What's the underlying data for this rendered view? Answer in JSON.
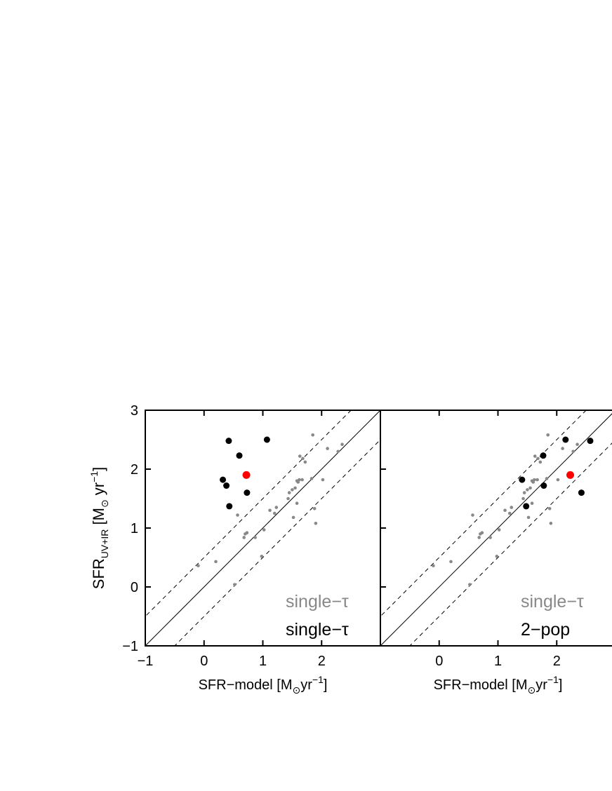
{
  "chart_data": [
    {
      "type": "scatter",
      "panel": "left",
      "xlim": [
        -1,
        3
      ],
      "ylim": [
        -1,
        3
      ],
      "xticks": [
        "-1",
        "0",
        "1",
        "2"
      ],
      "yticks": [
        "-1",
        "0",
        "1",
        "2",
        "3"
      ],
      "xlabel": {
        "main": "SFR−model [M",
        "sub": "⊙",
        "mid": "yr",
        "sup": "−1",
        "end": "]"
      },
      "ylabel": {
        "main": "SFR",
        "sub": "UV+IR",
        "mid": " [M",
        "sub2": "⊙",
        "mid2": " yr",
        "sup": "−1",
        "end": "]"
      },
      "legend": {
        "line1": "single−τ",
        "line2": "single−τ"
      },
      "reference_lines": {
        "one_to_one": true,
        "offsets": [
          0.5,
          -0.5
        ]
      },
      "series": [
        {
          "color": "#888888",
          "points": [
            [
              -0.1,
              0.36
            ],
            [
              0.2,
              0.43
            ],
            [
              0.52,
              0.04
            ],
            [
              0.68,
              0.84
            ],
            [
              0.7,
              0.9
            ],
            [
              0.73,
              0.92
            ],
            [
              0.87,
              0.84
            ],
            [
              0.98,
              0.52
            ],
            [
              1.02,
              0.97
            ],
            [
              1.12,
              1.3
            ],
            [
              1.2,
              1.25
            ],
            [
              1.23,
              1.35
            ],
            [
              1.43,
              1.5
            ],
            [
              1.45,
              1.6
            ],
            [
              1.5,
              1.65
            ],
            [
              1.55,
              1.68
            ],
            [
              1.58,
              1.8
            ],
            [
              1.6,
              1.78
            ],
            [
              1.62,
              1.82
            ],
            [
              1.67,
              1.82
            ],
            [
              1.52,
              1.18
            ],
            [
              1.58,
              1.42
            ],
            [
              1.63,
              2.22
            ],
            [
              1.68,
              2.18
            ],
            [
              1.72,
              2.12
            ],
            [
              1.83,
              1.84
            ],
            [
              1.88,
              1.33
            ],
            [
              1.9,
              1.08
            ],
            [
              1.85,
              2.58
            ],
            [
              2.02,
              1.82
            ],
            [
              2.1,
              2.35
            ],
            [
              2.28,
              2.3
            ],
            [
              2.35,
              2.42
            ],
            [
              0.57,
              1.22
            ]
          ]
        },
        {
          "color": "#000000",
          "points": [
            [
              0.42,
              2.48
            ],
            [
              0.6,
              2.23
            ],
            [
              1.07,
              2.5
            ],
            [
              0.32,
              1.82
            ],
            [
              0.38,
              1.72
            ],
            [
              0.43,
              1.37
            ],
            [
              0.73,
              1.6
            ]
          ]
        },
        {
          "color": "#ff0000",
          "points": [
            [
              0.72,
              1.9
            ]
          ]
        }
      ]
    },
    {
      "type": "scatter",
      "panel": "right",
      "xlim": [
        -1,
        3
      ],
      "ylim": [
        -1,
        3
      ],
      "xticks": [
        "0",
        "1",
        "2"
      ],
      "yticks": [],
      "xlabel": {
        "main": "SFR−model [M",
        "sub": "⊙",
        "mid": "yr",
        "sup": "−1",
        "end": "]"
      },
      "legend": {
        "line1": "single−τ",
        "line2": "2−pop"
      },
      "reference_lines": {
        "one_to_one": true,
        "offsets": [
          0.5,
          -0.5
        ]
      },
      "series": [
        {
          "color": "#888888",
          "points": [
            [
              -0.1,
              0.36
            ],
            [
              0.2,
              0.43
            ],
            [
              0.52,
              0.04
            ],
            [
              0.68,
              0.84
            ],
            [
              0.7,
              0.9
            ],
            [
              0.73,
              0.92
            ],
            [
              0.87,
              0.84
            ],
            [
              0.98,
              0.52
            ],
            [
              1.02,
              0.97
            ],
            [
              1.12,
              1.3
            ],
            [
              1.2,
              1.25
            ],
            [
              1.23,
              1.35
            ],
            [
              1.43,
              1.5
            ],
            [
              1.45,
              1.6
            ],
            [
              1.5,
              1.65
            ],
            [
              1.55,
              1.68
            ],
            [
              1.58,
              1.8
            ],
            [
              1.6,
              1.78
            ],
            [
              1.62,
              1.82
            ],
            [
              1.67,
              1.82
            ],
            [
              1.52,
              1.18
            ],
            [
              1.58,
              1.42
            ],
            [
              1.63,
              2.22
            ],
            [
              1.68,
              2.18
            ],
            [
              1.72,
              2.12
            ],
            [
              1.83,
              1.84
            ],
            [
              1.88,
              1.33
            ],
            [
              1.9,
              1.08
            ],
            [
              1.85,
              2.58
            ],
            [
              2.02,
              1.82
            ],
            [
              2.1,
              2.35
            ],
            [
              2.28,
              2.3
            ],
            [
              2.35,
              2.42
            ],
            [
              0.57,
              1.22
            ]
          ]
        },
        {
          "color": "#000000",
          "points": [
            [
              2.15,
              2.5
            ],
            [
              2.57,
              2.48
            ],
            [
              1.41,
              1.82
            ],
            [
              1.77,
              2.23
            ],
            [
              1.78,
              1.72
            ],
            [
              1.48,
              1.37
            ],
            [
              2.42,
              1.6
            ]
          ]
        },
        {
          "color": "#ff0000",
          "points": [
            [
              2.23,
              1.9
            ]
          ]
        }
      ]
    }
  ]
}
